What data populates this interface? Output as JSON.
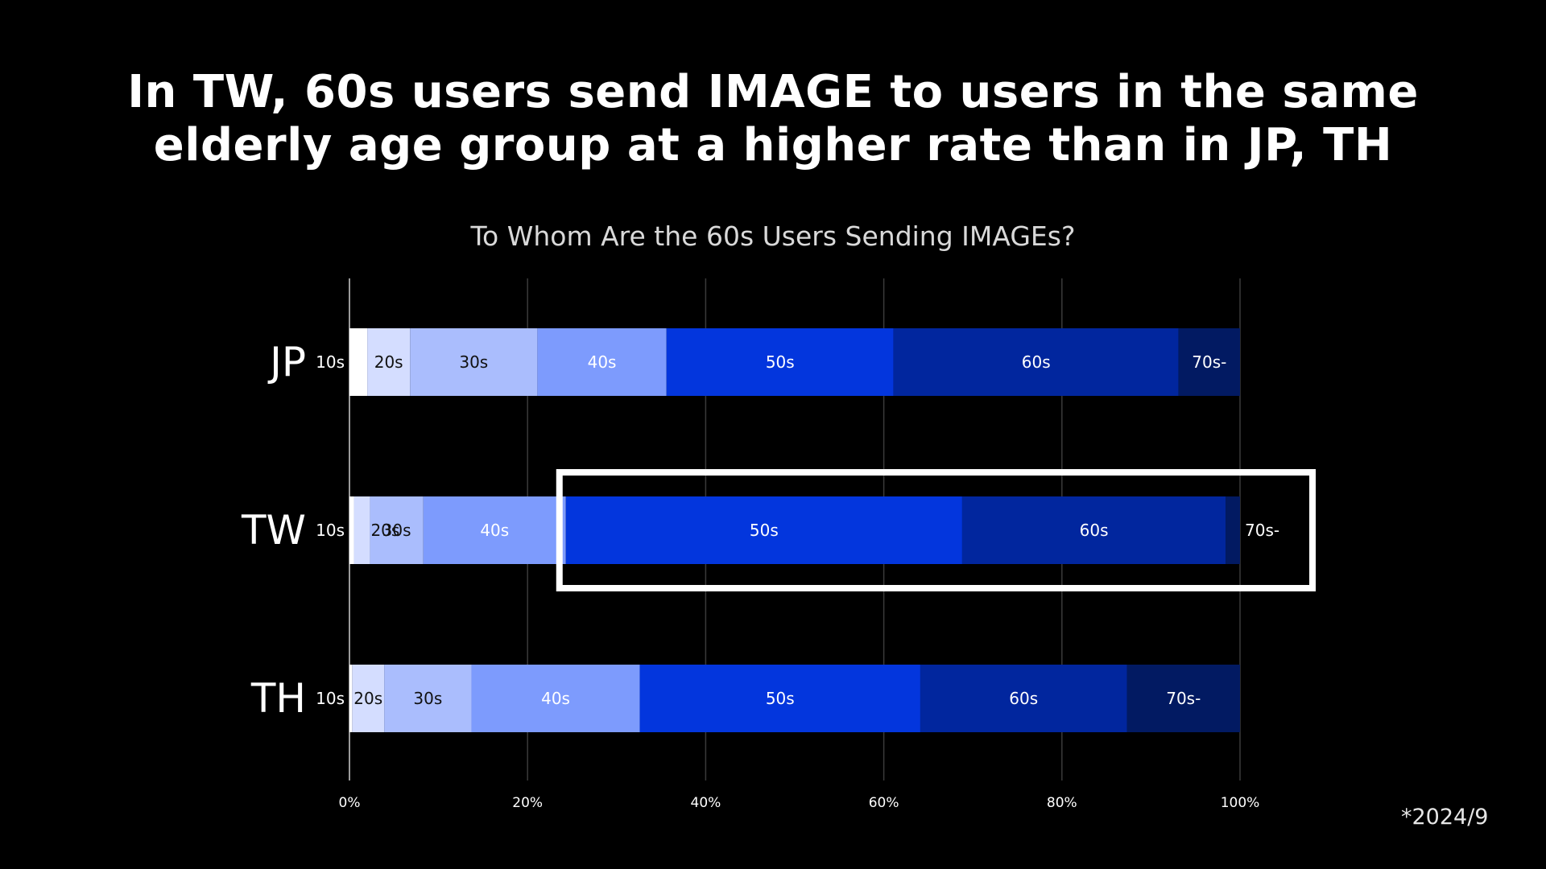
{
  "headline": {
    "line1": "In TW, 60s users send IMAGE to users in the same",
    "line2": "elderly age group at a higher rate than in JP, TH"
  },
  "footnote": "*2024/9",
  "colors": {
    "10s": "#ffffff",
    "20s": "#d4ddff",
    "30s": "#aabdfd",
    "40s": "#7d9bfd",
    "50s": "#0336dd",
    "60s": "#01269e",
    "70s-": "#021a62",
    "gridline": "#3a3a3a",
    "highlight_box": "#ffffff"
  },
  "chart_data": {
    "type": "bar",
    "orientation": "horizontal",
    "stacked": true,
    "title": "To Whom Are the 60s Users Sending IMAGEs?",
    "categories": [
      "JP",
      "TW",
      "TH"
    ],
    "xlim": [
      0,
      100
    ],
    "x_ticks": [
      "0%",
      "20%",
      "40%",
      "60%",
      "80%",
      "100%"
    ],
    "grid": true,
    "series": [
      {
        "name": "10s",
        "values": [
          2,
          0.5,
          0.3
        ]
      },
      {
        "name": "20s",
        "values": [
          4.8,
          1.8,
          3.6
        ]
      },
      {
        "name": "30s",
        "values": [
          14.3,
          6,
          9.8
        ]
      },
      {
        "name": "40s",
        "values": [
          14.5,
          16,
          18.9
        ]
      },
      {
        "name": "50s",
        "values": [
          25.5,
          44.5,
          31.5
        ]
      },
      {
        "name": "60s",
        "values": [
          32,
          29.6,
          23.2
        ]
      },
      {
        "name": "70s-",
        "values": [
          6.9,
          1.6,
          12.7
        ]
      }
    ],
    "annotation": "highlight box around TW bar from 50s to 70s-"
  }
}
